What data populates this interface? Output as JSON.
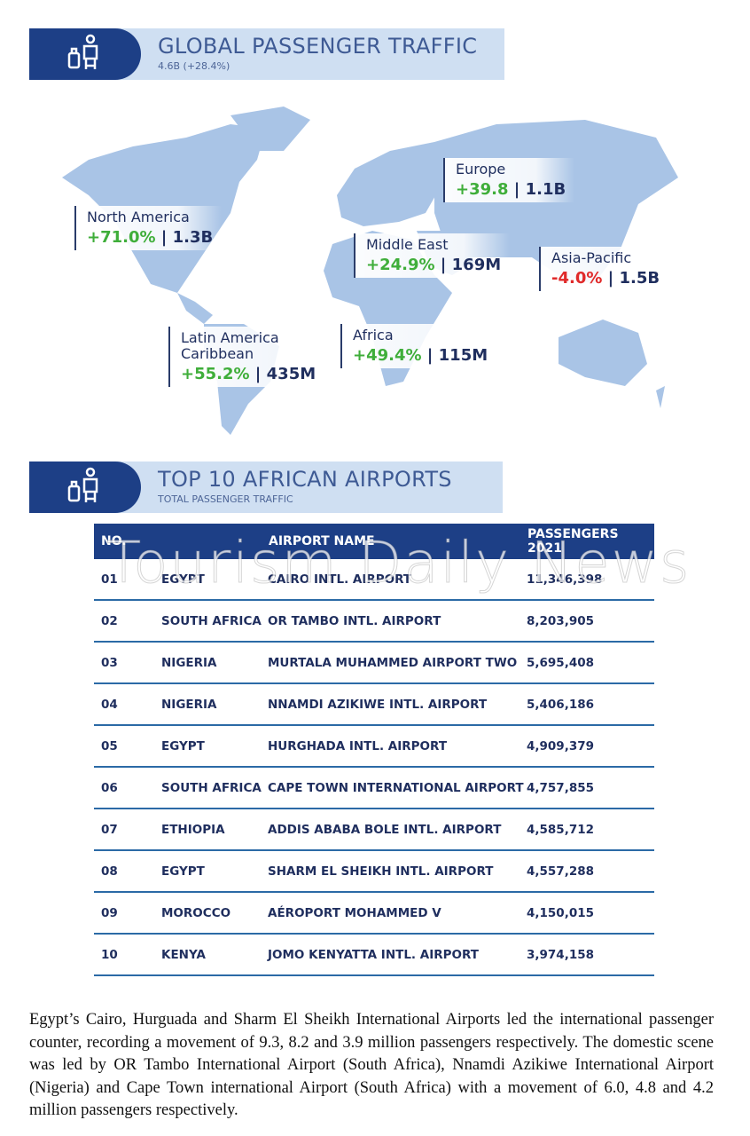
{
  "global": {
    "title": "GLOBAL PASSENGER TRAFFIC",
    "subtitle": "4.6B (+28.4%)",
    "icon": "traveler-luggage-icon"
  },
  "regions": [
    {
      "name": "North America",
      "change": "+71.0%",
      "total": "1.3B",
      "color": "#3fae3a"
    },
    {
      "name": "Europe",
      "change": "+39.8",
      "total": "1.1B",
      "color": "#3fae3a"
    },
    {
      "name": "Middle East",
      "change": "+24.9%",
      "total": "169M",
      "color": "#3fae3a"
    },
    {
      "name": "Asia-Pacific",
      "change": "-4.0%",
      "total": "1.5B",
      "color": "#e02a2a"
    },
    {
      "name": "Latin America",
      "name2": "Caribbean",
      "change": "+55.2%",
      "total": "435M",
      "color": "#3fae3a"
    },
    {
      "name": "Africa",
      "change": "+49.4%",
      "total": "115M",
      "color": "#3fae3a"
    }
  ],
  "airports": {
    "title": "TOP 10 AFRICAN AIRPORTS",
    "subtitle": "TOTAL PASSENGER TRAFFIC",
    "headers": [
      "NO.",
      "AIRPORT NAME",
      "PASSENGERS 2021"
    ],
    "rows": [
      [
        "01",
        "EGYPT",
        "CAIRO INTL. AIRPORT",
        "11,346,398"
      ],
      [
        "02",
        "SOUTH AFRICA",
        "OR TAMBO INTL. AIRPORT",
        "8,203,905"
      ],
      [
        "03",
        "NIGERIA",
        "MURTALA MUHAMMED AIRPORT TWO",
        "5,695,408"
      ],
      [
        "04",
        "NIGERIA",
        "NNAMDI AZIKIWE INTL. AIRPORT",
        "5,406,186"
      ],
      [
        "05",
        "EGYPT",
        "HURGHADA INTL. AIRPORT",
        "4,909,379"
      ],
      [
        "06",
        "SOUTH AFRICA",
        "CAPE TOWN INTERNATIONAL AIRPORT",
        "4,757,855"
      ],
      [
        "07",
        "ETHIOPIA",
        "ADDIS ABABA BOLE INTL. AIRPORT",
        "4,585,712"
      ],
      [
        "08",
        "EGYPT",
        "SHARM EL SHEIKH INTL. AIRPORT",
        "4,557,288"
      ],
      [
        "09",
        "MOROCCO",
        "AÉROPORT MOHAMMED V",
        "4,150,015"
      ],
      [
        "10",
        "KENYA",
        "JOMO KENYATTA INTL. AIRPORT",
        "3,974,158"
      ]
    ]
  },
  "watermark": "Tourism Daily News",
  "paragraph": "Egypt’s Cairo, Hurguada and Sharm El Sheikh International Airports led the international passenger counter, recording a movement of 9.3, 8.2 and 3.9 million passengers respectively. The domestic scene was led by OR Tambo International Airport (South Africa), Nnamdi Azikiwe International Airport (Nigeria) and Cape Town international Airport (South Africa) with a movement of 6.0, 4.8 and 4.2 million passengers respectively."
}
